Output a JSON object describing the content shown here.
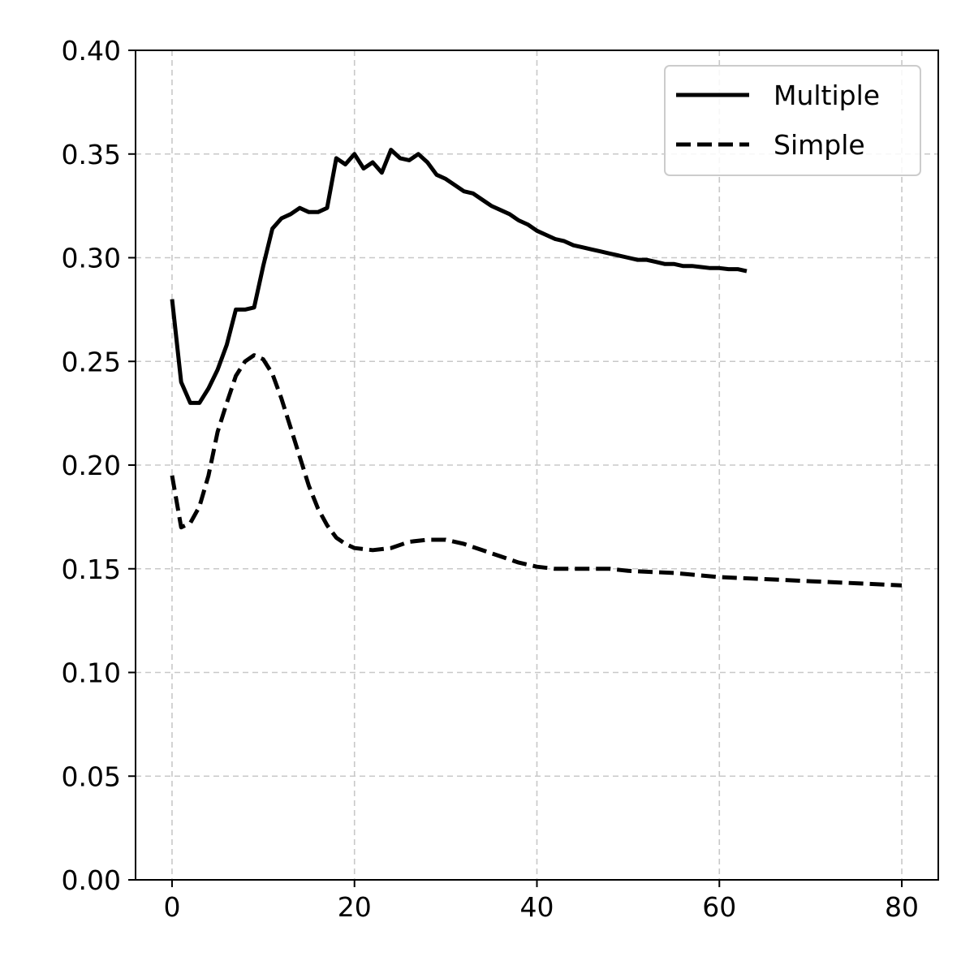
{
  "chart_data": {
    "type": "line",
    "title": "",
    "xlabel": "",
    "ylabel": "",
    "xlim": [
      -4,
      84
    ],
    "ylim": [
      0,
      0.4
    ],
    "xticks": [
      0,
      20,
      40,
      60,
      80
    ],
    "yticks": [
      0.0,
      0.05,
      0.1,
      0.15,
      0.2,
      0.25,
      0.3,
      0.35,
      0.4
    ],
    "xtick_labels": [
      "0",
      "20",
      "40",
      "60",
      "80"
    ],
    "ytick_labels": [
      "0.00",
      "0.05",
      "0.10",
      "0.15",
      "0.20",
      "0.25",
      "0.30",
      "0.35",
      "0.40"
    ],
    "grid": true,
    "legend_position": "top-right",
    "series": [
      {
        "name": "Multiple",
        "style": "solid",
        "color": "#000000",
        "x": [
          0,
          1,
          2,
          3,
          4,
          5,
          6,
          7,
          8,
          9,
          10,
          11,
          12,
          13,
          14,
          15,
          16,
          17,
          18,
          19,
          20,
          21,
          22,
          23,
          24,
          25,
          26,
          27,
          28,
          29,
          30,
          31,
          32,
          33,
          34,
          35,
          36,
          37,
          38,
          39,
          40,
          41,
          42,
          43,
          44,
          45,
          46,
          47,
          48,
          49,
          50,
          51,
          52,
          53,
          54,
          55,
          56,
          57,
          58,
          59,
          60,
          61,
          62,
          63
        ],
        "y": [
          0.28,
          0.24,
          0.23,
          0.23,
          0.237,
          0.246,
          0.258,
          0.275,
          0.275,
          0.276,
          0.296,
          0.314,
          0.319,
          0.321,
          0.324,
          0.322,
          0.322,
          0.324,
          0.348,
          0.345,
          0.35,
          0.343,
          0.346,
          0.341,
          0.352,
          0.348,
          0.347,
          0.35,
          0.346,
          0.34,
          0.338,
          0.335,
          0.332,
          0.331,
          0.328,
          0.325,
          0.323,
          0.321,
          0.318,
          0.316,
          0.313,
          0.311,
          0.309,
          0.308,
          0.306,
          0.305,
          0.304,
          0.303,
          0.302,
          0.301,
          0.3,
          0.299,
          0.299,
          0.298,
          0.297,
          0.297,
          0.296,
          0.296,
          0.2955,
          0.295,
          0.295,
          0.2945,
          0.2945,
          0.2935
        ]
      },
      {
        "name": "Simple",
        "style": "dashed",
        "color": "#000000",
        "x": [
          0,
          1,
          2,
          3,
          4,
          5,
          6,
          7,
          8,
          9,
          10,
          11,
          12,
          13,
          14,
          15,
          16,
          17,
          18,
          19,
          20,
          22,
          24,
          26,
          28,
          30,
          32,
          34,
          36,
          38,
          40,
          42,
          44,
          46,
          48,
          50,
          55,
          60,
          65,
          70,
          75,
          80
        ],
        "y": [
          0.195,
          0.17,
          0.172,
          0.18,
          0.195,
          0.216,
          0.23,
          0.243,
          0.25,
          0.253,
          0.251,
          0.244,
          0.232,
          0.218,
          0.204,
          0.19,
          0.179,
          0.171,
          0.165,
          0.162,
          0.16,
          0.159,
          0.16,
          0.163,
          0.164,
          0.164,
          0.162,
          0.159,
          0.156,
          0.153,
          0.151,
          0.15,
          0.15,
          0.15,
          0.15,
          0.149,
          0.148,
          0.146,
          0.145,
          0.144,
          0.143,
          0.142
        ]
      }
    ]
  }
}
